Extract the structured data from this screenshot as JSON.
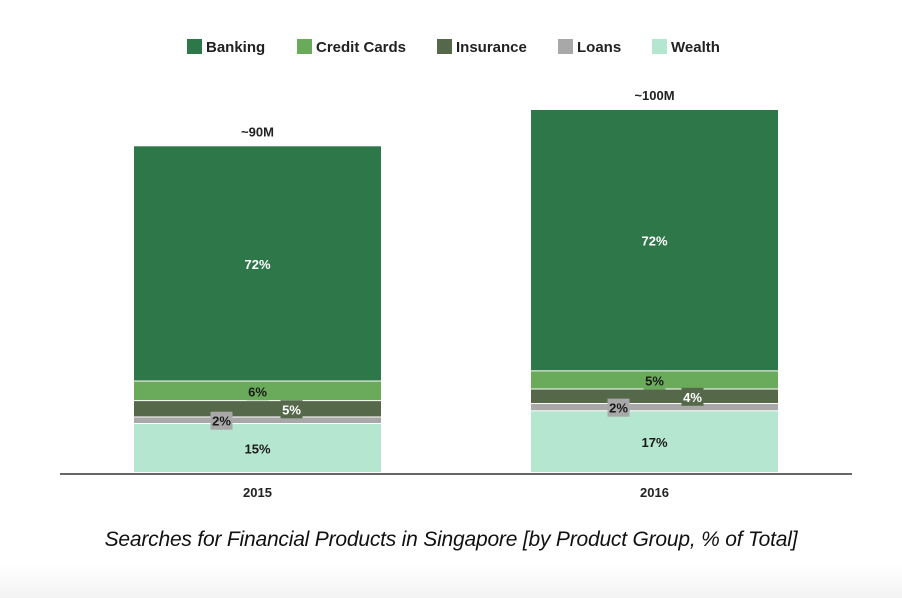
{
  "chart_data": {
    "type": "bar",
    "stacked": true,
    "title": "Searches for Financial Products in Singapore [by Product Group, % of Total]",
    "xlabel": "",
    "ylabel": "",
    "categories": [
      "2015",
      "2016"
    ],
    "totals": [
      90,
      100
    ],
    "total_labels": [
      "~90M",
      "~100M"
    ],
    "total_unit": "M searches",
    "series": [
      {
        "name": "Banking",
        "color": "#2e7749",
        "label_color": "#ffffff",
        "values": [
          72,
          72
        ],
        "labels": [
          "72%",
          "72%"
        ]
      },
      {
        "name": "Credit Cards",
        "color": "#6aab5b",
        "label_color": "#1a1a1a",
        "values": [
          6,
          5
        ],
        "labels": [
          "6%",
          "5%"
        ]
      },
      {
        "name": "Insurance",
        "color": "#56684a",
        "label_color": "#ffffff",
        "values": [
          5,
          4
        ],
        "labels": [
          "5%",
          "4%"
        ]
      },
      {
        "name": "Loans",
        "color": "#a8a8a8",
        "label_color": "#1a1a1a",
        "values": [
          2,
          2
        ],
        "labels": [
          "2%",
          "2%"
        ]
      },
      {
        "name": "Wealth",
        "color": "#b5e6d0",
        "label_color": "#1a1a1a",
        "values": [
          15,
          17
        ],
        "labels": [
          "15%",
          "17%"
        ]
      }
    ],
    "legend_position": "top",
    "grid": false,
    "ylim": [
      0,
      100
    ]
  },
  "caption": "Searches for Financial Products in Singapore [by Product Group, % of Total]"
}
